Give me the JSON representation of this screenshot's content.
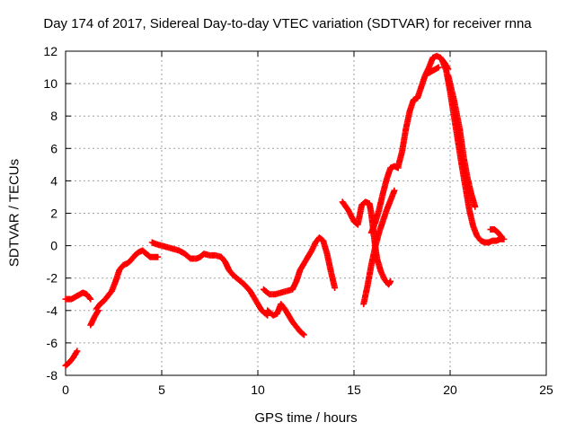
{
  "chart_data": {
    "type": "scatter",
    "title": "Day 174 of 2017, Sidereal Day-to-day VTEC variation (SDTVAR) for receiver rnna",
    "xlabel": "GPS time / hours",
    "ylabel": "SDTVAR / TECUs",
    "xlim": [
      0,
      25
    ],
    "ylim": [
      -8,
      12
    ],
    "xticks": [
      0,
      5,
      10,
      15,
      20,
      25
    ],
    "yticks": [
      -8,
      -6,
      -4,
      -2,
      0,
      2,
      4,
      6,
      8,
      10,
      12
    ],
    "grid": true,
    "marker": "+",
    "color": "#ff0000",
    "series": [
      {
        "x": [
          0,
          0.2,
          0.4,
          0.6
        ],
        "y": [
          -7.4,
          -7.2,
          -6.9,
          -6.5
        ]
      },
      {
        "x": [
          0,
          0.3,
          0.6,
          0.9,
          1.1,
          1.3
        ],
        "y": [
          -3.3,
          -3.3,
          -3.1,
          -2.9,
          -3.0,
          -3.3
        ]
      },
      {
        "x": [
          1.3,
          1.5,
          1.7
        ],
        "y": [
          -4.9,
          -4.4,
          -4.0
        ]
      },
      {
        "x": [
          1.6,
          1.8,
          2.0,
          2.2,
          2.4,
          2.6,
          2.8,
          3.0,
          3.2,
          3.4,
          3.6,
          3.8,
          4.0,
          4.2,
          4.4,
          4.6,
          4.8
        ],
        "y": [
          -3.9,
          -3.6,
          -3.4,
          -3.1,
          -2.8,
          -2.2,
          -1.5,
          -1.2,
          -1.1,
          -0.9,
          -0.6,
          -0.4,
          -0.3,
          -0.5,
          -0.7,
          -0.7,
          -0.7
        ]
      },
      {
        "x": [
          4.5,
          4.7,
          5.0,
          5.3,
          5.6,
          5.9,
          6.2,
          6.5,
          6.8,
          7.0,
          7.2,
          7.5,
          7.8,
          8.1,
          8.3,
          8.5,
          8.7,
          9.0,
          9.3,
          9.6,
          9.9,
          10.2,
          10.5
        ],
        "y": [
          0.2,
          0.1,
          0.0,
          -0.1,
          -0.2,
          -0.3,
          -0.5,
          -0.8,
          -0.8,
          -0.7,
          -0.5,
          -0.6,
          -0.6,
          -0.7,
          -1.0,
          -1.5,
          -1.8,
          -2.1,
          -2.4,
          -2.8,
          -3.4,
          -4.0,
          -4.3
        ]
      },
      {
        "x": [
          10.3,
          10.6,
          10.9,
          11.2,
          11.5,
          11.8,
          12.0,
          12.2,
          12.4,
          12.6,
          12.8,
          13.0,
          13.2,
          13.4,
          13.6,
          13.8,
          14.0
        ],
        "y": [
          -2.7,
          -3.0,
          -3.0,
          -2.9,
          -2.8,
          -2.7,
          -2.2,
          -1.5,
          -1.1,
          -0.7,
          -0.3,
          0.2,
          0.5,
          0.3,
          -0.5,
          -1.6,
          -2.6
        ]
      },
      {
        "x": [
          10.5,
          10.8,
          11.0,
          11.2,
          11.4,
          11.6,
          11.8,
          12.0,
          12.2,
          12.4
        ],
        "y": [
          -4.0,
          -4.3,
          -4.2,
          -3.6,
          -3.9,
          -4.3,
          -4.7,
          -5.0,
          -5.3,
          -5.5
        ]
      },
      {
        "x": [
          14.4,
          14.7,
          15.0,
          15.2,
          15.4,
          15.6,
          15.8,
          15.9,
          16.0,
          16.1,
          16.2,
          16.4,
          16.6,
          16.8,
          16.9
        ],
        "y": [
          2.7,
          2.2,
          1.5,
          1.3,
          2.5,
          2.7,
          2.6,
          2.0,
          1.0,
          0.0,
          -0.8,
          -1.6,
          -2.1,
          -2.4,
          -2.2
        ]
      },
      {
        "x": [
          15.5,
          15.7,
          15.9,
          16.1,
          16.3,
          16.5,
          16.7,
          16.9,
          17.1
        ],
        "y": [
          -3.6,
          -2.5,
          -1.2,
          -0.1,
          0.8,
          1.5,
          2.2,
          2.8,
          3.4
        ]
      },
      {
        "x": [
          15.9,
          16.1,
          16.3,
          16.5,
          16.7,
          16.9,
          17.1,
          17.3
        ],
        "y": [
          0.8,
          1.4,
          2.2,
          3.2,
          4.1,
          4.8,
          4.9,
          4.8
        ]
      },
      {
        "x": [
          17.3,
          17.5,
          17.7,
          17.9,
          18.1,
          18.3,
          18.5,
          18.7,
          18.9,
          19.1,
          19.3,
          19.5,
          19.7,
          19.9
        ],
        "y": [
          4.9,
          5.8,
          7.2,
          8.3,
          9.0,
          9.1,
          9.8,
          10.5,
          11.0,
          11.6,
          11.7,
          11.6,
          11.3,
          10.9
        ]
      },
      {
        "x": [
          18.8,
          19.1,
          19.4
        ],
        "y": [
          10.6,
          10.8,
          11.0
        ]
      },
      {
        "x": [
          19.6,
          19.8,
          20.0,
          20.2,
          20.4,
          20.6,
          20.8,
          21.0,
          21.2,
          21.4,
          21.6,
          21.8,
          22.0,
          22.2,
          22.4,
          22.6,
          22.8
        ],
        "y": [
          11.4,
          10.8,
          9.5,
          8.0,
          6.5,
          5.0,
          3.6,
          2.2,
          1.2,
          0.6,
          0.3,
          0.2,
          0.2,
          0.3,
          0.3,
          0.4,
          0.4
        ]
      },
      {
        "x": [
          19.9,
          20.2,
          20.5,
          20.7,
          20.9,
          21.1,
          21.3
        ],
        "y": [
          10.5,
          9.0,
          7.2,
          5.5,
          4.2,
          3.2,
          2.4
        ]
      },
      {
        "x": [
          22.1,
          22.3,
          22.5,
          22.7
        ],
        "y": [
          1.0,
          1.0,
          0.8,
          0.5
        ]
      }
    ]
  }
}
